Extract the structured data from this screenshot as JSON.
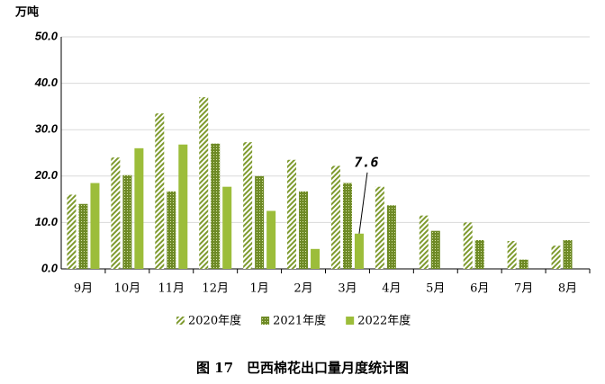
{
  "chart_data": {
    "type": "bar",
    "title": "图 17　巴西棉花出口量月度统计图",
    "y_label": "万吨",
    "categories": [
      "9月",
      "10月",
      "11月",
      "12月",
      "1月",
      "2月",
      "3月",
      "4月",
      "5月",
      "6月",
      "7月",
      "8月"
    ],
    "series": [
      {
        "name": "2020年度",
        "color": "#7e9a2e",
        "pattern": "hatch",
        "values": [
          16,
          24,
          33.5,
          37,
          27.3,
          23.5,
          22.2,
          17.7,
          11.5,
          10,
          6,
          5
        ]
      },
      {
        "name": "2021年度",
        "color": "#6e8a26",
        "pattern": "dots",
        "values": [
          14,
          20.2,
          16.7,
          27,
          20,
          16.7,
          18.5,
          13.7,
          8.2,
          6.2,
          2,
          6.2
        ]
      },
      {
        "name": "2022年度",
        "color": "#9cbd3a",
        "pattern": "solid",
        "values": [
          18.5,
          26,
          26.8,
          17.7,
          12.5,
          4.3,
          7.6,
          null,
          null,
          null,
          null,
          null
        ]
      }
    ],
    "annotations": [
      {
        "text": "7.6",
        "x": "3月",
        "series": "2022年度"
      }
    ],
    "ylim": [
      0,
      50
    ],
    "yticks": [
      {
        "value": 0,
        "label": "0.0"
      },
      {
        "value": 10,
        "label": "10.0"
      },
      {
        "value": 20,
        "label": "20.0"
      },
      {
        "value": 30,
        "label": "30.0"
      },
      {
        "value": 40,
        "label": "40.0"
      },
      {
        "value": 50,
        "label": "50.0"
      }
    ],
    "grid": true
  }
}
